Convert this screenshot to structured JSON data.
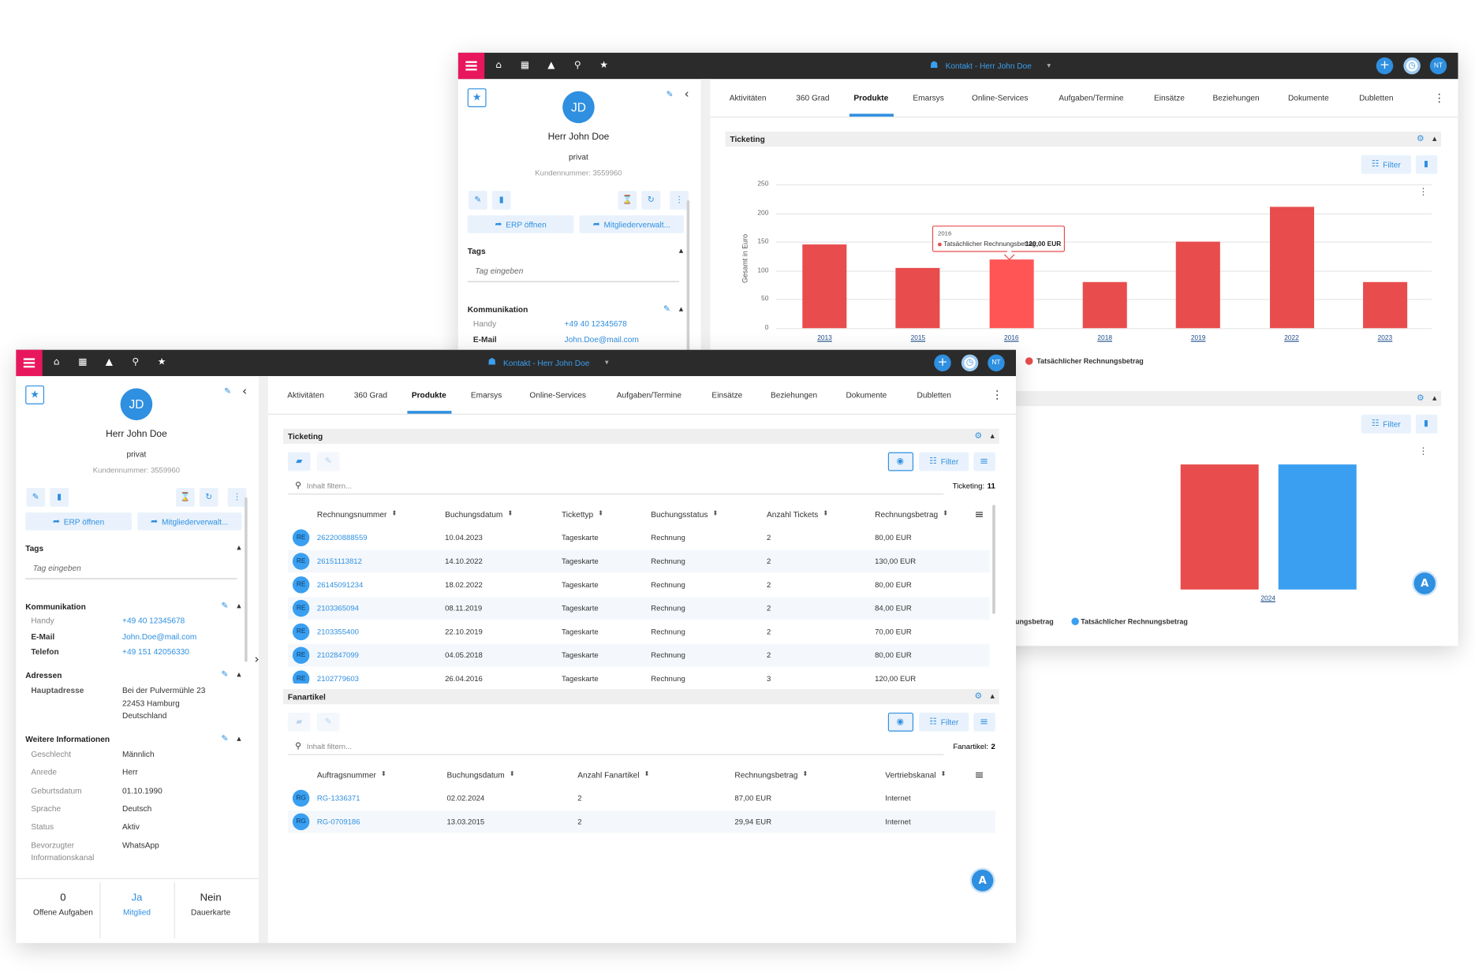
{
  "windows": [
    {
      "header": {
        "title": "Kontakt - Herr John Doe",
        "user": "NT"
      },
      "sidebar": {
        "initials": "JD",
        "name": "Herr John Doe",
        "type": "privat",
        "customer_number": "Kundennummer: 3559960",
        "actions": [
          "ERP öffnen",
          "Mitgliederverwalt..."
        ],
        "tags": {
          "title": "Tags",
          "placeholder": "Tag eingeben"
        },
        "communication": {
          "title": "Kommunikation",
          "rows": [
            {
              "label": "Handy",
              "value": "+49 40 12345678"
            },
            {
              "label": "E-Mail",
              "value": "John.Doe@mail.com"
            }
          ]
        }
      },
      "tabs": [
        "Aktivitäten",
        "360 Grad",
        "Produkte",
        "Emarsys",
        "Online-Services",
        "Aufgaben/Termine",
        "Einsätze",
        "Beziehungen",
        "Dokumente",
        "Dubletten"
      ],
      "active_tab": 2,
      "sections": [
        {
          "title": "Ticketing",
          "filter": "Filter",
          "chart": {
            "type": "bar",
            "y_label": "Gesamt in Euro",
            "categories": [
              "2013",
              "2015",
              "2016",
              "2018",
              "2019",
              "2022",
              "2023"
            ],
            "series": [
              {
                "name": "Tatsächlicher Rechnungsbetrag",
                "color": "#e84c4c",
                "values": [
                  145,
                  105,
                  120,
                  80,
                  150,
                  210,
                  80
                ]
              }
            ],
            "ylim": [
              0,
              250
            ],
            "yticks": [
              0,
              50,
              100,
              150,
              200,
              250
            ],
            "grid": true,
            "tooltip": {
              "title": "2016",
              "label": "Tatsächlicher Rechnungsbetrag:",
              "value": "120,00 EUR"
            }
          }
        },
        {
          "filter": "Filter",
          "chart": {
            "type": "bar",
            "categories": [
              "2024"
            ],
            "series": [
              {
                "name": "ungsbetrag",
                "color": "#e84c4c",
                "values": [
                  217
                ]
              },
              {
                "name": "Tatsächlicher Rechnungsbetrag",
                "color": "#3a9ff0",
                "values": [
                  217
                ]
              }
            ]
          }
        }
      ]
    },
    {
      "header": {
        "title": "Kontakt - Herr John Doe",
        "user": "NT"
      },
      "sidebar": {
        "initials": "JD",
        "name": "Herr John Doe",
        "type": "privat",
        "customer_number": "Kundennummer: 3559960",
        "actions": [
          "ERP öffnen",
          "Mitgliederverwalt..."
        ],
        "tags": {
          "title": "Tags",
          "placeholder": "Tag eingeben"
        },
        "communication": {
          "title": "Kommunikation",
          "rows": [
            {
              "label": "Handy",
              "value": "+49 40 12345678"
            },
            {
              "label": "E-Mail",
              "value": "John.Doe@mail.com"
            },
            {
              "label": "Telefon",
              "value": "+49 151 42056330"
            }
          ]
        },
        "addresses": {
          "title": "Adressen",
          "label": "Hauptadresse",
          "lines": [
            "Bei der Pulvermühle 23",
            "22453 Hamburg",
            "Deutschland"
          ]
        },
        "further": {
          "title": "Weitere Informationen",
          "rows": [
            {
              "label": "Geschlecht",
              "value": "Männlich"
            },
            {
              "label": "Anrede",
              "value": "Herr"
            },
            {
              "label": "Geburtsdatum",
              "value": "01.10.1990"
            },
            {
              "label": "Sprache",
              "value": "Deutsch"
            },
            {
              "label": "Status",
              "value": "Aktiv"
            },
            {
              "label": "Bevorzugter Informationskanal",
              "value": "WhatsApp"
            }
          ]
        },
        "stats": [
          {
            "value": 0,
            "label": "Offene Aufgaben"
          },
          {
            "value": "Ja",
            "label": "Mitglied"
          },
          {
            "value": "Nein",
            "label": "Dauerkarte"
          }
        ]
      },
      "tabs": [
        "Aktivitäten",
        "360 Grad",
        "Produkte",
        "Emarsys",
        "Online-Services",
        "Aufgaben/Termine",
        "Einsätze",
        "Beziehungen",
        "Dokumente",
        "Dubletten"
      ],
      "active_tab": 2,
      "sections": [
        {
          "title": "Ticketing",
          "search_placeholder": "Inhalt filtern...",
          "filter": "Filter",
          "count_label": "Ticketing:",
          "count": 11,
          "badge": "RE",
          "columns": [
            "Rechnungsnummer",
            "Buchungsdatum",
            "Tickettyp",
            "Buchungsstatus",
            "Anzahl Tickets",
            "Rechnungsbetrag"
          ],
          "rows": [
            [
              "262200888559",
              "10.04.2023",
              "Tageskarte",
              "Rechnung",
              2,
              "80,00 EUR"
            ],
            [
              "26151113812",
              "14.10.2022",
              "Tageskarte",
              "Rechnung",
              2,
              "130,00 EUR"
            ],
            [
              "26145091234",
              "18.02.2022",
              "Tageskarte",
              "Rechnung",
              2,
              "80,00 EUR"
            ],
            [
              "2103365094",
              "08.11.2019",
              "Tageskarte",
              "Rechnung",
              2,
              "84,00 EUR"
            ],
            [
              "2103355400",
              "22.10.2019",
              "Tageskarte",
              "Rechnung",
              2,
              "70,00 EUR"
            ],
            [
              "2102847099",
              "04.05.2018",
              "Tageskarte",
              "Rechnung",
              2,
              "80,00 EUR"
            ],
            [
              "2102779603",
              "26.04.2016",
              "Tageskarte",
              "Rechnung",
              3,
              "120,00 EUR"
            ]
          ]
        },
        {
          "title": "Fanartikel",
          "search_placeholder": "Inhalt filtern...",
          "filter": "Filter",
          "count_label": "Fanartikel:",
          "count": 2,
          "badge": "RG",
          "columns": [
            "Auftragsnummer",
            "Buchungsdatum",
            "Anzahl Fanartikel",
            "Rechnungsbetrag",
            "Vertriebskanal"
          ],
          "rows": [
            [
              "RG-1336371",
              "02.02.2024",
              2,
              "87,00 EUR",
              "Internet"
            ],
            [
              "RG-0709186",
              "13.03.2015",
              2,
              "29,94 EUR",
              "Internet"
            ]
          ]
        }
      ]
    }
  ]
}
